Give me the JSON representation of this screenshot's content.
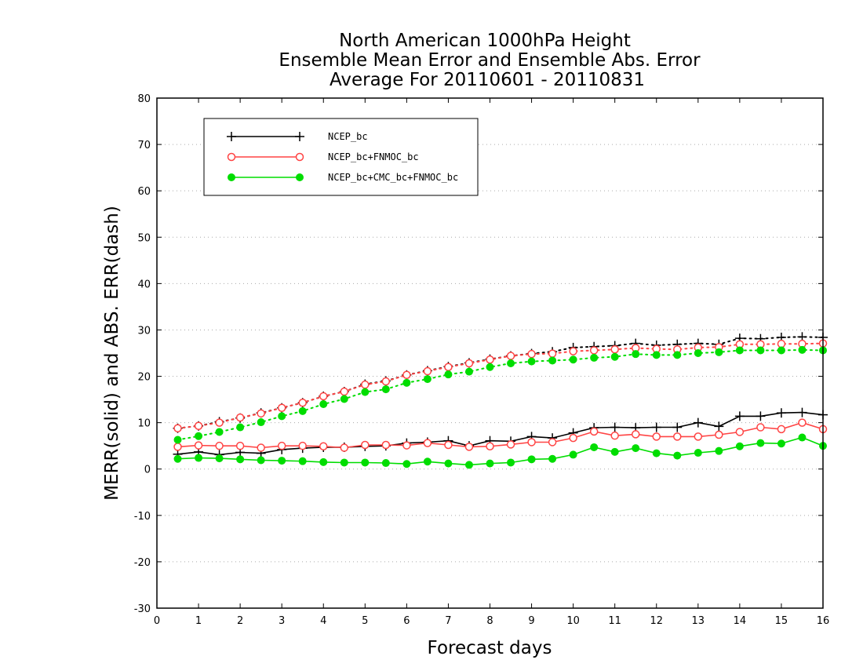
{
  "chart_data": {
    "type": "line",
    "title_lines": [
      "North American 1000hPa Height",
      "Ensemble Mean Error and Ensemble Abs. Error",
      "Average For 20110601 - 20110831"
    ],
    "xlabel": "Forecast days",
    "ylabel": "MERR(solid) and ABS. ERR(dash)",
    "xlim": [
      0,
      16
    ],
    "ylim": [
      -30,
      80
    ],
    "xticks": [
      0,
      1,
      2,
      3,
      4,
      5,
      6,
      7,
      8,
      9,
      10,
      11,
      12,
      13,
      14,
      15,
      16
    ],
    "yticks": [
      -30,
      -20,
      -10,
      0,
      10,
      20,
      30,
      40,
      50,
      60,
      70,
      80
    ],
    "grid": "horizontal dotted",
    "legend_position": "top-left",
    "x": [
      0.5,
      1,
      1.5,
      2,
      2.5,
      3,
      3.5,
      4,
      4.5,
      5,
      5.5,
      6,
      6.5,
      7,
      7.5,
      8,
      8.5,
      9,
      9.5,
      10,
      10.5,
      11,
      11.5,
      12,
      12.5,
      13,
      13.5,
      14,
      14.5,
      15,
      15.5,
      16
    ],
    "series": [
      {
        "name": "NCEP_bc",
        "color": "#000000",
        "marker": "plus",
        "merr": [
          3.2,
          3.7,
          3.1,
          3.6,
          3.4,
          4.2,
          4.5,
          4.7,
          4.7,
          4.9,
          5.0,
          5.6,
          5.8,
          6.1,
          5.0,
          6.1,
          6.0,
          7.0,
          6.7,
          7.8,
          8.9,
          9.0,
          8.9,
          9.0,
          9.0,
          10.0,
          9.2,
          11.4,
          11.4,
          12.1,
          12.2,
          11.7
        ],
        "abs_err": [
          8.8,
          9.3,
          10.2,
          11.0,
          12.1,
          13.2,
          14.3,
          15.7,
          16.7,
          18.3,
          19.0,
          20.3,
          21.2,
          22.1,
          22.9,
          23.7,
          24.4,
          24.9,
          25.3,
          26.2,
          26.4,
          26.6,
          27.1,
          26.7,
          26.9,
          27.1,
          26.9,
          28.2,
          28.1,
          28.4,
          28.5,
          28.4
        ]
      },
      {
        "name": "NCEP_bc+FNMOC_bc",
        "color": "#ff4444",
        "marker": "circle-open",
        "merr": [
          4.8,
          5.1,
          5.0,
          5.0,
          4.6,
          5.0,
          5.0,
          4.9,
          4.6,
          5.2,
          5.2,
          5.1,
          5.6,
          5.2,
          4.8,
          4.9,
          5.3,
          5.8,
          5.8,
          6.7,
          8.1,
          7.2,
          7.5,
          7.0,
          7.0,
          7.0,
          7.4,
          8.0,
          9.0,
          8.6,
          10.0,
          8.6
        ],
        "abs_err": [
          8.8,
          9.3,
          10.0,
          11.1,
          12.0,
          13.2,
          14.3,
          15.7,
          16.7,
          18.2,
          18.9,
          20.3,
          21.1,
          22.0,
          22.8,
          23.6,
          24.4,
          24.8,
          24.9,
          25.4,
          25.6,
          25.8,
          26.1,
          25.9,
          25.8,
          26.2,
          26.3,
          26.9,
          26.9,
          27.0,
          27.0,
          27.1
        ]
      },
      {
        "name": "NCEP_bc+CMC_bc+FNMOC_bc",
        "color": "#00dd00",
        "marker": "circle-filled",
        "merr": [
          2.2,
          2.4,
          2.3,
          2.1,
          1.9,
          1.8,
          1.7,
          1.5,
          1.4,
          1.4,
          1.3,
          1.1,
          1.6,
          1.2,
          0.9,
          1.2,
          1.4,
          2.1,
          2.2,
          3.1,
          4.7,
          3.7,
          4.5,
          3.4,
          2.9,
          3.5,
          3.9,
          4.9,
          5.6,
          5.5,
          6.8,
          5.0
        ],
        "abs_err": [
          6.3,
          7.1,
          8.0,
          9.0,
          10.1,
          11.4,
          12.5,
          14.0,
          15.1,
          16.6,
          17.2,
          18.6,
          19.4,
          20.4,
          21.0,
          22.0,
          22.8,
          23.2,
          23.4,
          23.6,
          24.0,
          24.2,
          24.8,
          24.6,
          24.6,
          25.0,
          25.2,
          25.6,
          25.6,
          25.6,
          25.7,
          25.6
        ]
      }
    ]
  }
}
